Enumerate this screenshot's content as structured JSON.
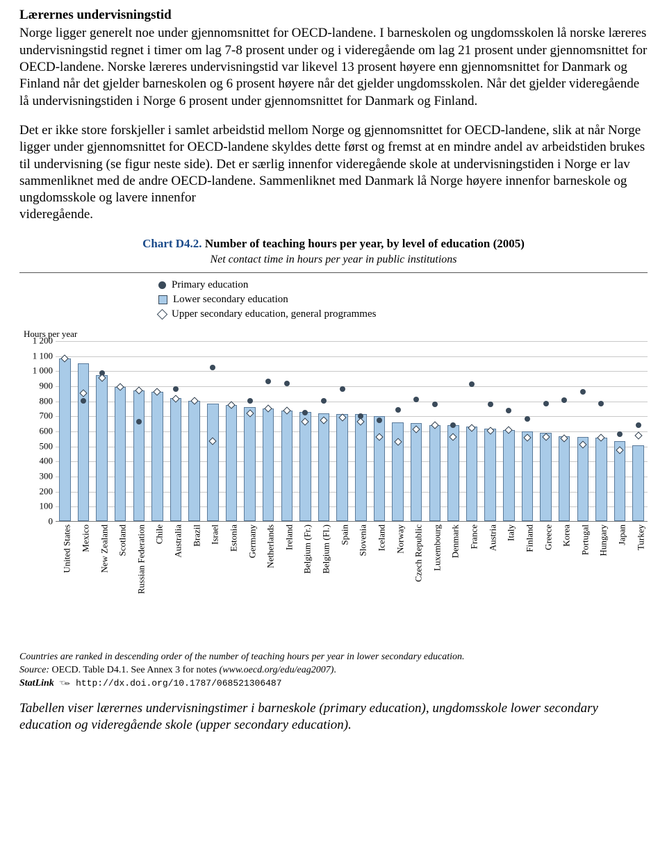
{
  "heading": "Lærernes undervisningstid",
  "para1": "Norge ligger generelt noe under gjennomsnittet for OECD-landene. I barneskolen og ungdomsskolen lå norske læreres undervisningstid regnet i timer om lag 7-8 prosent under og i videregående om lag 21 prosent under gjennomsnittet for OECD-landene. Norske læreres undervisningstid var likevel 13 prosent høyere enn gjennomsnittet for Danmark og Finland når det gjelder barneskolen og 6 prosent høyere når det gjelder ungdomsskolen. Når det gjelder videregående lå undervisningstiden i Norge 6 prosent under gjennomsnittet for Danmark og Finland.",
  "para2": "Det er ikke store forskjeller i samlet arbeidstid mellom Norge og gjennomsnittet for OECD-landene, slik at når Norge ligger under gjennomsnittet for OECD-landene skyldes dette først og fremst at en mindre andel av arbeidstiden brukes til undervisning (se figur neste side). Det er særlig innenfor videregående skole at undervisningstiden i Norge er lav sammenliknet med de andre OECD-landene. Sammenliknet med Danmark lå Norge høyere innenfor barneskole og ungdomsskole og lavere innenfor",
  "para3": "videregående.",
  "chart": {
    "title_label": "Chart D4.2.",
    "title_main": " Number of teaching hours per year, by level of education (2005)",
    "subtitle": "Net contact time in hours per year in public institutions",
    "axis_label": "Hours per year",
    "ylim": [
      0,
      1200
    ],
    "ytick_step": 100,
    "yticks": [
      "1 200",
      "1 100",
      "1 000",
      "900",
      "800",
      "700",
      "600",
      "500",
      "400",
      "300",
      "200",
      "100",
      "0"
    ],
    "bar_color": "#a9cbe8",
    "bar_border": "#5a7a9a",
    "circle_color": "#3a4a5a",
    "grid_color": "#c8c8c8",
    "legend": {
      "primary": "Primary education",
      "lower": "Lower secondary education",
      "upper": "Upper secondary education, general programmes"
    },
    "countries": [
      {
        "name": "United States",
        "bar": 1080,
        "primary": 1080,
        "upper": 1080
      },
      {
        "name": "Mexico",
        "bar": 1047,
        "primary": 800,
        "upper": 850
      },
      {
        "name": "New Zealand",
        "bar": 968,
        "primary": 985,
        "upper": 950
      },
      {
        "name": "Scotland",
        "bar": 893,
        "primary": 893,
        "upper": 893
      },
      {
        "name": "Russian Federation",
        "bar": 870,
        "primary": 660,
        "upper": 870
      },
      {
        "name": "Chile",
        "bar": 860,
        "primary": 860,
        "upper": 860
      },
      {
        "name": "Australia",
        "bar": 820,
        "primary": 880,
        "upper": 815
      },
      {
        "name": "Brazil",
        "bar": 800,
        "primary": 800,
        "upper": 800
      },
      {
        "name": "Israel",
        "bar": 780,
        "primary": 1020,
        "upper": 530
      },
      {
        "name": "Estonia",
        "bar": 770,
        "primary": 770,
        "upper": 770
      },
      {
        "name": "Germany",
        "bar": 758,
        "primary": 800,
        "upper": 715
      },
      {
        "name": "Netherlands",
        "bar": 750,
        "primary": 930,
        "upper": 750
      },
      {
        "name": "Ireland",
        "bar": 735,
        "primary": 915,
        "upper": 735
      },
      {
        "name": "Belgium (Fr.)",
        "bar": 725,
        "primary": 720,
        "upper": 660
      },
      {
        "name": "Belgium (Fl.)",
        "bar": 715,
        "primary": 800,
        "upper": 670
      },
      {
        "name": "Spain",
        "bar": 713,
        "primary": 880,
        "upper": 690
      },
      {
        "name": "Slovenia",
        "bar": 710,
        "primary": 700,
        "upper": 660
      },
      {
        "name": "Iceland",
        "bar": 700,
        "primary": 670,
        "upper": 560
      },
      {
        "name": "Norway",
        "bar": 655,
        "primary": 740,
        "upper": 525
      },
      {
        "name": "Czech Republic",
        "bar": 650,
        "primary": 810,
        "upper": 610
      },
      {
        "name": "Luxembourg",
        "bar": 640,
        "primary": 775,
        "upper": 640
      },
      {
        "name": "Denmark",
        "bar": 640,
        "primary": 640,
        "upper": 560
      },
      {
        "name": "France",
        "bar": 630,
        "primary": 910,
        "upper": 620
      },
      {
        "name": "Austria",
        "bar": 615,
        "primary": 775,
        "upper": 600
      },
      {
        "name": "Italy",
        "bar": 605,
        "primary": 735,
        "upper": 605
      },
      {
        "name": "Finland",
        "bar": 595,
        "primary": 680,
        "upper": 555
      },
      {
        "name": "Greece",
        "bar": 585,
        "primary": 780,
        "upper": 560
      },
      {
        "name": "Korea",
        "bar": 565,
        "primary": 805,
        "upper": 550
      },
      {
        "name": "Portugal",
        "bar": 560,
        "primary": 860,
        "upper": 510
      },
      {
        "name": "Hungary",
        "bar": 555,
        "primary": 780,
        "upper": 555
      },
      {
        "name": "Japan",
        "bar": 530,
        "primary": 580,
        "upper": 470
      },
      {
        "name": "Turkey",
        "bar": 505,
        "primary": 640,
        "upper": 570
      }
    ]
  },
  "notes": {
    "rank": "Countries are ranked in descending order of the number of teaching hours per year in lower secondary education.",
    "source": "Source: OECD. Table D4.1. See Annex 3 for notes (www.oecd.org/edu/eag2007).",
    "statlink_label": "StatLink",
    "statlink_url": "http://dx.doi.org/10.1787/068521306487"
  },
  "caption": "Tabellen viser lærernes undervisningstimer i barneskole (primary education), ungdomsskole lower secondary education og videregående skole (upper secondary education)."
}
